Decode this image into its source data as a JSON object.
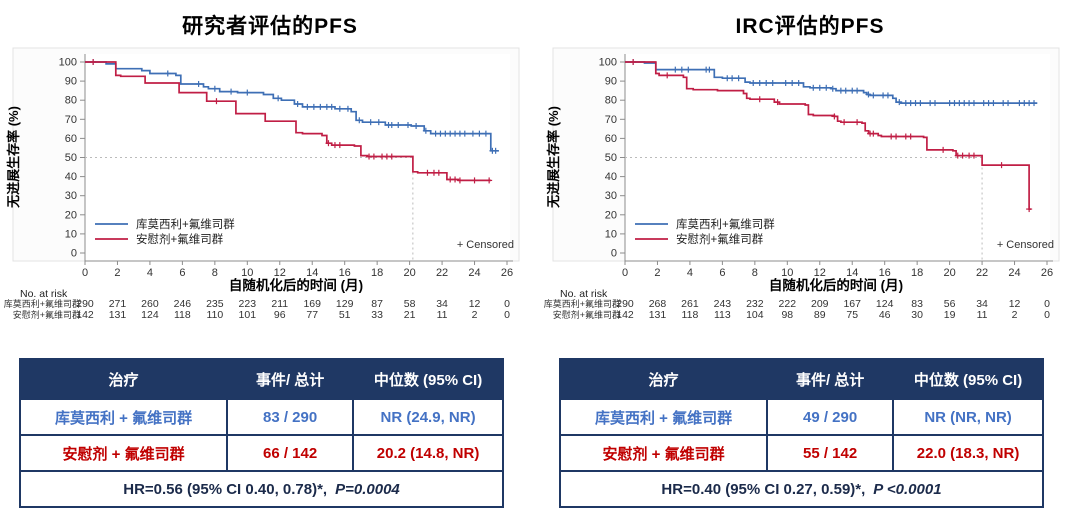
{
  "style": {
    "table_header_bg": "#1F3864",
    "table_border": "#1F3864",
    "figure_bg": "#fcfcfc",
    "figure_border": "#e3e3e3",
    "axis_color": "#8c8c8c",
    "tick_text": "#333333",
    "ref_line": "#bbbbbb"
  },
  "chart_data": [
    {
      "type": "line",
      "subtype": "kaplan-meier",
      "title": "研究者评估的PFS",
      "xlabel": "自随机化后的时间 (月)",
      "ylabel": "无进展生存率 (%)",
      "censored_label": "+ Censored",
      "xlim": [
        0,
        26
      ],
      "ylim": [
        0,
        100
      ],
      "xticks": [
        0,
        2,
        4,
        6,
        8,
        10,
        12,
        14,
        16,
        18,
        20,
        22,
        24,
        26
      ],
      "yticks": [
        0,
        10,
        20,
        30,
        40,
        50,
        60,
        70,
        80,
        90,
        100
      ],
      "grid": false,
      "legend_position": "bottom-left-inside",
      "median_ref": {
        "x": 20.2,
        "y": 50
      },
      "series": [
        {
          "name": "库莫西利+氟维司群",
          "color": "#3E6FB5",
          "steps": [
            [
              0,
              100
            ],
            [
              1.3,
              99
            ],
            [
              1.9,
              96.5
            ],
            [
              3.5,
              95.5
            ],
            [
              4.0,
              94
            ],
            [
              5.6,
              93
            ],
            [
              5.9,
              88.5
            ],
            [
              7.3,
              87
            ],
            [
              7.6,
              86
            ],
            [
              8.3,
              84.5
            ],
            [
              9.4,
              84
            ],
            [
              11.0,
              83
            ],
            [
              11.6,
              81
            ],
            [
              12.1,
              80
            ],
            [
              12.9,
              78
            ],
            [
              13.4,
              76.5
            ],
            [
              15.4,
              75.5
            ],
            [
              16.4,
              74
            ],
            [
              16.7,
              69.5
            ],
            [
              17.1,
              68.5
            ],
            [
              18.5,
              67
            ],
            [
              20.1,
              66.5
            ],
            [
              20.9,
              64
            ],
            [
              21.3,
              62.5
            ],
            [
              25.0,
              53.5
            ]
          ],
          "end_x": 25.5,
          "censor_x": [
            0.5,
            5.1,
            7.0,
            8.0,
            9.0,
            10.0,
            11.9,
            13.1,
            13.7,
            14.1,
            14.5,
            14.9,
            15.2,
            15.7,
            16.2,
            16.9,
            17.6,
            18.1,
            18.7,
            18.9,
            19.3,
            19.9,
            20.4,
            21.0,
            21.6,
            21.9,
            22.2,
            22.5,
            22.8,
            23.1,
            23.4,
            23.9,
            24.3,
            24.7,
            25.1,
            25.3
          ]
        },
        {
          "name": "安慰剂+氟维司群",
          "color": "#C01E45",
          "steps": [
            [
              0,
              100
            ],
            [
              1.9,
              93
            ],
            [
              2.2,
              92.5
            ],
            [
              3.7,
              89
            ],
            [
              5.8,
              84
            ],
            [
              7.5,
              79.5
            ],
            [
              9.3,
              73
            ],
            [
              11.1,
              69
            ],
            [
              13.0,
              63
            ],
            [
              13.4,
              62.5
            ],
            [
              14.6,
              61.5
            ],
            [
              14.9,
              57.5
            ],
            [
              15.2,
              56.5
            ],
            [
              16.6,
              56
            ],
            [
              17.0,
              51
            ],
            [
              17.4,
              50.5
            ],
            [
              20.2,
              42.5
            ],
            [
              20.5,
              42
            ],
            [
              22.3,
              38.5
            ],
            [
              23.0,
              38
            ]
          ],
          "end_x": 25.0,
          "censor_x": [
            0.5,
            8.1,
            15.0,
            15.4,
            15.7,
            17.5,
            17.8,
            18.3,
            18.6,
            18.9,
            21.1,
            21.5,
            21.8,
            22.5,
            22.8,
            23.1,
            24.0,
            24.9
          ]
        }
      ],
      "risk_table": {
        "heading": "No. at risk",
        "rows": [
          {
            "label": "库莫西利+氟维司群",
            "values": [
              290,
              271,
              260,
              246,
              235,
              223,
              211,
              169,
              129,
              87,
              58,
              34,
              12,
              0
            ]
          },
          {
            "label": "安慰剂+氟维司群",
            "values": [
              142,
              131,
              124,
              118,
              110,
              101,
              96,
              77,
              51,
              33,
              21,
              11,
              2,
              0
            ]
          }
        ]
      },
      "summary": {
        "headers": [
          "治疗",
          "事件/ 总计",
          "中位数 (95% CI)"
        ],
        "rows": [
          {
            "treatment": "库莫西利 + 氟维司群",
            "events": "83 / 290",
            "median": "NR (24.9, NR)",
            "color": "#4472C4"
          },
          {
            "treatment": "安慰剂 + 氟维司群",
            "events": "66 / 142",
            "median": "20.2 (14.8, NR)",
            "color": "#C00000"
          }
        ],
        "footer_hr": "HR=0.56 (95% CI 0.40, 0.78)*,",
        "footer_p": "P=0.0004"
      }
    },
    {
      "type": "line",
      "subtype": "kaplan-meier",
      "title": "IRC评估的PFS",
      "xlabel": "自随机化后的时间 (月)",
      "ylabel": "无进展生存率 (%)",
      "censored_label": "+ Censored",
      "xlim": [
        0,
        26
      ],
      "ylim": [
        0,
        100
      ],
      "xticks": [
        0,
        2,
        4,
        6,
        8,
        10,
        12,
        14,
        16,
        18,
        20,
        22,
        24,
        26
      ],
      "yticks": [
        0,
        10,
        20,
        30,
        40,
        50,
        60,
        70,
        80,
        90,
        100
      ],
      "grid": false,
      "legend_position": "bottom-left-inside",
      "median_ref": {
        "x": 22.0,
        "y": 50
      },
      "series": [
        {
          "name": "库莫西利+氟维司群",
          "color": "#3E6FB5",
          "steps": [
            [
              0,
              100
            ],
            [
              1.2,
              99.5
            ],
            [
              1.9,
              96
            ],
            [
              5.5,
              92
            ],
            [
              6.0,
              91.5
            ],
            [
              7.4,
              89.5
            ],
            [
              7.7,
              89
            ],
            [
              11.0,
              87
            ],
            [
              11.4,
              86.5
            ],
            [
              12.7,
              86
            ],
            [
              13.0,
              85
            ],
            [
              14.7,
              84
            ],
            [
              14.9,
              83
            ],
            [
              15.1,
              82.5
            ],
            [
              16.5,
              81
            ],
            [
              16.7,
              79
            ],
            [
              17.0,
              78.5
            ]
          ],
          "end_x": 25.4,
          "censor_x": [
            0.5,
            3.1,
            3.5,
            3.9,
            5.0,
            5.2,
            6.3,
            6.6,
            7.0,
            7.9,
            8.3,
            8.7,
            9.1,
            9.9,
            10.3,
            10.7,
            11.6,
            12.0,
            12.4,
            12.8,
            13.3,
            13.6,
            14.0,
            14.3,
            15.0,
            15.3,
            15.9,
            16.2,
            16.9,
            17.3,
            17.6,
            17.9,
            18.2,
            18.8,
            19.1,
            20.0,
            20.3,
            20.6,
            20.9,
            21.2,
            21.5,
            22.1,
            22.4,
            22.7,
            23.3,
            23.6,
            24.3,
            24.6,
            24.9,
            25.2
          ]
        },
        {
          "name": "安慰剂+氟维司群",
          "color": "#C01E45",
          "steps": [
            [
              0,
              100
            ],
            [
              1.9,
              94
            ],
            [
              2.1,
              93
            ],
            [
              3.6,
              92
            ],
            [
              3.8,
              86
            ],
            [
              4.2,
              85.5
            ],
            [
              5.7,
              85
            ],
            [
              7.3,
              83.5
            ],
            [
              7.5,
              81
            ],
            [
              7.7,
              80.5
            ],
            [
              9.2,
              79
            ],
            [
              9.5,
              78
            ],
            [
              11.1,
              77.5
            ],
            [
              11.3,
              72.5
            ],
            [
              11.6,
              72
            ],
            [
              12.9,
              71.5
            ],
            [
              13.1,
              69
            ],
            [
              13.3,
              68.5
            ],
            [
              14.6,
              68
            ],
            [
              14.8,
              64
            ],
            [
              15.0,
              62.5
            ],
            [
              15.6,
              61.5
            ],
            [
              15.8,
              61
            ],
            [
              18.4,
              60.5
            ],
            [
              18.6,
              54
            ],
            [
              20.2,
              53.5
            ],
            [
              20.4,
              51
            ],
            [
              22.0,
              46
            ],
            [
              24.9,
              23
            ]
          ],
          "end_x": 25.0,
          "censor_x": [
            0.5,
            2.6,
            8.3,
            9.4,
            12.9,
            13.5,
            14.3,
            15.1,
            15.3,
            16.4,
            16.7,
            17.3,
            17.6,
            19.6,
            20.5,
            20.8,
            21.2,
            21.5,
            23.2,
            24.9
          ]
        }
      ],
      "risk_table": {
        "heading": "No. at risk",
        "rows": [
          {
            "label": "库莫西利+氟维司群",
            "values": [
              290,
              268,
              261,
              243,
              232,
              222,
              209,
              167,
              124,
              83,
              56,
              34,
              12,
              0
            ]
          },
          {
            "label": "安慰剂+氟维司群",
            "values": [
              142,
              131,
              118,
              113,
              104,
              98,
              89,
              75,
              46,
              30,
              19,
              11,
              2,
              0
            ]
          }
        ]
      },
      "summary": {
        "headers": [
          "治疗",
          "事件/ 总计",
          "中位数 (95% CI)"
        ],
        "rows": [
          {
            "treatment": "库莫西利 + 氟维司群",
            "events": "49 / 290",
            "median": "NR (NR, NR)",
            "color": "#4472C4"
          },
          {
            "treatment": "安慰剂 + 氟维司群",
            "events": "55 / 142",
            "median": "22.0 (18.3, NR)",
            "color": "#C00000"
          }
        ],
        "footer_hr": "HR=0.40 (95% CI 0.27, 0.59)*,",
        "footer_p": "P <0.0001"
      }
    }
  ]
}
